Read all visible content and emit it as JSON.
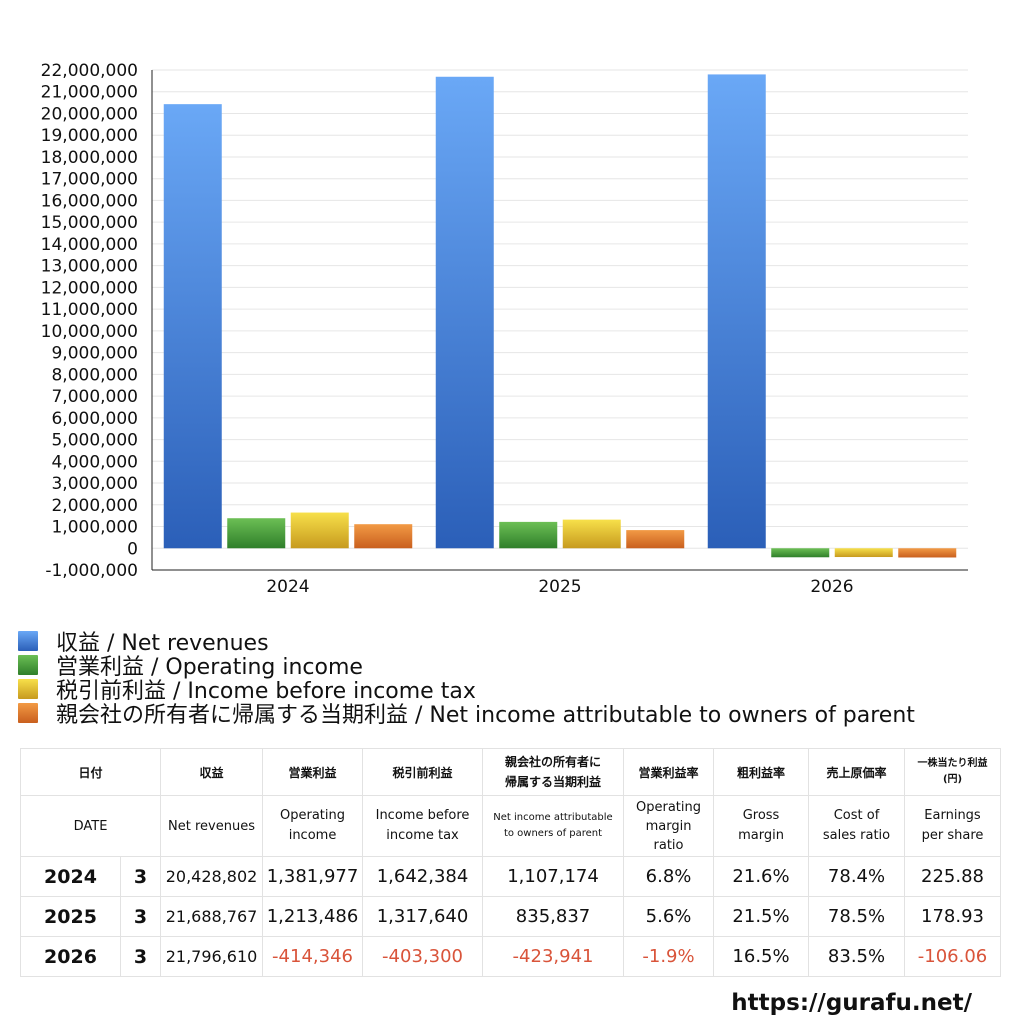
{
  "chart_data": {
    "type": "bar",
    "categories": [
      "2024",
      "2025",
      "2026"
    ],
    "series": [
      {
        "name": "収益 / Net revenues",
        "color": "#3b78d8",
        "values": [
          20428802,
          21688767,
          21796610
        ]
      },
      {
        "name": "営業利益 / Operating income",
        "color": "#4fa040",
        "values": [
          1381977,
          1213486,
          -414346
        ]
      },
      {
        "name": "税引前利益 / Income before income tax",
        "color": "#e0b82e",
        "values": [
          1642384,
          1317640,
          -403300
        ]
      },
      {
        "name": "親会社の所有者に帰属する当期利益 / Net income attributable to owners of parent",
        "color": "#e07a2a",
        "values": [
          1107174,
          835837,
          -423941
        ]
      }
    ],
    "ylim": [
      -1000000,
      22000000
    ],
    "ytick_step": 1000000,
    "yticks": [
      "22,000,000",
      "21,000,000",
      "20,000,000",
      "19,000,000",
      "18,000,000",
      "17,000,000",
      "16,000,000",
      "15,000,000",
      "14,000,000",
      "13,000,000",
      "12,000,000",
      "11,000,000",
      "10,000,000",
      "9,000,000",
      "8,000,000",
      "7,000,000",
      "6,000,000",
      "5,000,000",
      "4,000,000",
      "3,000,000",
      "2,000,000",
      "1,000,000",
      "0",
      "-1,000,000"
    ],
    "grid": true,
    "legend_position": "bottom-left"
  },
  "table": {
    "header_jp": [
      "日付",
      "収益",
      "営業利益",
      "税引前利益",
      "親会社の所有者に\n帰属する当期利益",
      "営業利益率",
      "粗利益率",
      "売上原価率",
      "一株当たり利益\n(円)"
    ],
    "header_en": [
      "DATE",
      "Net revenues",
      "Operating\nincome",
      "Income before\nincome tax",
      "Net income attributable\nto owners of parent",
      "Operating\nmargin\nratio",
      "Gross\nmargin",
      "Cost of\nsales ratio",
      "Earnings\nper share"
    ],
    "rows": [
      {
        "year": "2024",
        "month": "3",
        "revenues": "20,428,802",
        "operating_income": "1,381,977",
        "pretax_income": "1,642,384",
        "net_income": "1,107,174",
        "operating_margin": "6.8%",
        "gross_margin": "21.6%",
        "cost_ratio": "78.4%",
        "eps": "225.88"
      },
      {
        "year": "2025",
        "month": "3",
        "revenues": "21,688,767",
        "operating_income": "1,213,486",
        "pretax_income": "1,317,640",
        "net_income": "835,837",
        "operating_margin": "5.6%",
        "gross_margin": "21.5%",
        "cost_ratio": "78.5%",
        "eps": "178.93"
      },
      {
        "year": "2026",
        "month": "3",
        "revenues": "21,796,610",
        "operating_income": "-414,346",
        "pretax_income": "-403,300",
        "net_income": "-423,941",
        "operating_margin": "-1.9%",
        "gross_margin": "16.5%",
        "cost_ratio": "83.5%",
        "eps": "-106.06"
      }
    ]
  },
  "footer": {
    "url": "https://gurafu.net/"
  }
}
